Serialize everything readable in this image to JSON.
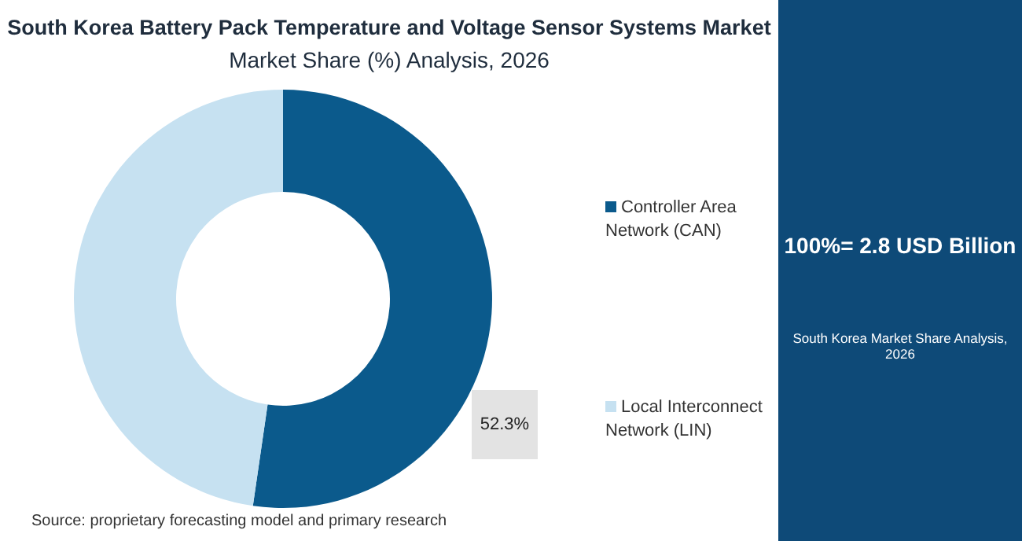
{
  "chart_data": {
    "type": "donut",
    "title": "South Korea Battery Pack Temperature and Voltage Sensor Systems Market",
    "subtitle": "Market Share (%) Analysis, 2026",
    "categories": [
      "Controller Area Network (CAN)",
      "Local Interconnect Network (LIN)"
    ],
    "values": [
      52.3,
      47.7
    ],
    "colors": [
      "#0b5a8c",
      "#c6e1f1"
    ],
    "value_labels": [
      "52.3%",
      null
    ],
    "legend": "right",
    "annotations": [
      "100%= 2.8 USD Billion",
      "South Korea Market Share Analysis, 2026",
      "Source: proprietary forecasting model and primary research"
    ]
  }
}
